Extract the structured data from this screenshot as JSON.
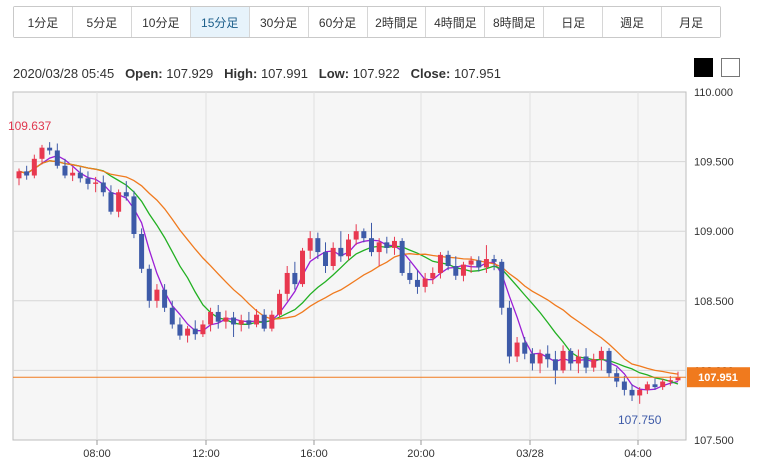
{
  "tabs": [
    {
      "label": "1分足"
    },
    {
      "label": "5分足"
    },
    {
      "label": "10分足"
    },
    {
      "label": "15分足"
    },
    {
      "label": "30分足"
    },
    {
      "label": "60分足"
    },
    {
      "label": "2時間足"
    },
    {
      "label": "4時間足"
    },
    {
      "label": "8時間足"
    },
    {
      "label": "日足"
    },
    {
      "label": "週足"
    },
    {
      "label": "月足"
    }
  ],
  "active_tab": "15分足",
  "ohlc": {
    "datetime": "2020/03/28 05:45",
    "open_label": "Open:",
    "open": "107.929",
    "high_label": "High:",
    "high": "107.991",
    "low_label": "Low:",
    "low": "107.922",
    "close_label": "Close:",
    "close": "107.951"
  },
  "theme_buttons": [
    "dark-theme",
    "light-theme"
  ],
  "colors": {
    "up": "#e8384f",
    "down": "#3d5aa8",
    "ma_fast": "#9b1fd6",
    "ma_mid": "#22b022",
    "ma_slow": "#f07a1e",
    "price_line": "#f07a1e",
    "high_label": "#e0384f",
    "low_label": "#3d5aa8"
  },
  "chart_data": {
    "type": "candlestick",
    "ylim": [
      107.5,
      110.0
    ],
    "y_ticks": [
      "110.000",
      "109.500",
      "109.000",
      "108.500",
      "108.000",
      "107.500"
    ],
    "x_ticks": [
      "08:00",
      "12:00",
      "16:00",
      "20:00",
      "03/28",
      "04:00"
    ],
    "current_price": "107.951",
    "high_marker": "109.637",
    "low_marker": "107.750",
    "candles": [
      [
        109.38,
        109.45,
        109.33,
        109.43
      ],
      [
        109.43,
        109.47,
        109.37,
        109.4
      ],
      [
        109.4,
        109.55,
        109.38,
        109.52
      ],
      [
        109.52,
        109.62,
        109.48,
        109.6
      ],
      [
        109.6,
        109.64,
        109.55,
        109.58
      ],
      [
        109.58,
        109.63,
        109.45,
        109.47
      ],
      [
        109.47,
        109.52,
        109.38,
        109.4
      ],
      [
        109.4,
        109.46,
        109.36,
        109.42
      ],
      [
        109.42,
        109.46,
        109.35,
        109.38
      ],
      [
        109.38,
        109.43,
        109.3,
        109.34
      ],
      [
        109.34,
        109.39,
        109.28,
        109.35
      ],
      [
        109.35,
        109.4,
        109.25,
        109.28
      ],
      [
        109.28,
        109.33,
        109.12,
        109.14
      ],
      [
        109.14,
        109.3,
        109.1,
        109.28
      ],
      [
        109.28,
        109.36,
        109.22,
        109.25
      ],
      [
        109.25,
        109.29,
        108.95,
        108.98
      ],
      [
        108.98,
        109.02,
        108.7,
        108.73
      ],
      [
        108.73,
        108.76,
        108.45,
        108.5
      ],
      [
        108.5,
        108.62,
        108.45,
        108.58
      ],
      [
        108.58,
        108.62,
        108.42,
        108.45
      ],
      [
        108.45,
        108.5,
        108.3,
        108.33
      ],
      [
        108.33,
        108.38,
        108.22,
        108.25
      ],
      [
        108.25,
        108.32,
        108.2,
        108.3
      ],
      [
        108.3,
        108.36,
        108.22,
        108.26
      ],
      [
        108.26,
        108.36,
        108.24,
        108.33
      ],
      [
        108.33,
        108.45,
        108.28,
        108.42
      ],
      [
        108.42,
        108.47,
        108.3,
        108.35
      ],
      [
        108.35,
        108.43,
        108.3,
        108.38
      ],
      [
        108.38,
        108.42,
        108.24,
        108.33
      ],
      [
        108.33,
        108.4,
        108.28,
        108.36
      ],
      [
        108.36,
        108.42,
        108.3,
        108.33
      ],
      [
        108.33,
        108.44,
        108.31,
        108.4
      ],
      [
        108.4,
        108.44,
        108.28,
        108.3
      ],
      [
        108.3,
        108.43,
        108.28,
        108.4
      ],
      [
        108.4,
        108.58,
        108.38,
        108.55
      ],
      [
        108.55,
        108.75,
        108.5,
        108.7
      ],
      [
        108.7,
        108.78,
        108.58,
        108.62
      ],
      [
        108.62,
        108.88,
        108.6,
        108.86
      ],
      [
        108.86,
        109.0,
        108.8,
        108.95
      ],
      [
        108.95,
        108.99,
        108.8,
        108.85
      ],
      [
        108.85,
        108.92,
        108.7,
        108.75
      ],
      [
        108.75,
        108.92,
        108.72,
        108.88
      ],
      [
        108.88,
        109.0,
        108.78,
        108.82
      ],
      [
        108.82,
        108.98,
        108.79,
        108.94
      ],
      [
        108.94,
        109.05,
        108.9,
        109.0
      ],
      [
        109.0,
        109.02,
        108.92,
        108.95
      ],
      [
        108.95,
        109.06,
        108.82,
        108.85
      ],
      [
        108.85,
        108.95,
        108.75,
        108.92
      ],
      [
        108.92,
        108.96,
        108.84,
        108.88
      ],
      [
        108.88,
        108.96,
        108.83,
        108.93
      ],
      [
        108.93,
        108.95,
        108.68,
        108.7
      ],
      [
        108.7,
        108.78,
        108.62,
        108.65
      ],
      [
        108.65,
        108.72,
        108.55,
        108.6
      ],
      [
        108.6,
        108.7,
        108.56,
        108.66
      ],
      [
        108.66,
        108.74,
        108.62,
        108.7
      ],
      [
        108.7,
        108.85,
        108.66,
        108.83
      ],
      [
        108.83,
        108.86,
        108.72,
        108.75
      ],
      [
        108.75,
        108.82,
        108.65,
        108.68
      ],
      [
        108.68,
        108.78,
        108.64,
        108.76
      ],
      [
        108.76,
        108.82,
        108.7,
        108.79
      ],
      [
        108.79,
        108.82,
        108.71,
        108.74
      ],
      [
        108.74,
        108.9,
        108.7,
        108.8
      ],
      [
        108.8,
        108.83,
        108.72,
        108.78
      ],
      [
        108.78,
        108.8,
        108.4,
        108.45
      ],
      [
        108.45,
        108.5,
        108.05,
        108.1
      ],
      [
        108.1,
        108.24,
        108.06,
        108.2
      ],
      [
        108.2,
        108.24,
        108.08,
        108.12
      ],
      [
        108.12,
        108.16,
        108.0,
        108.05
      ],
      [
        108.05,
        108.15,
        107.98,
        108.12
      ],
      [
        108.12,
        108.18,
        108.02,
        108.08
      ],
      [
        108.08,
        108.14,
        107.9,
        108.0
      ],
      [
        108.0,
        108.18,
        107.98,
        108.14
      ],
      [
        108.14,
        108.16,
        108.0,
        108.05
      ],
      [
        108.05,
        108.15,
        107.98,
        108.1
      ],
      [
        108.1,
        108.16,
        107.98,
        108.02
      ],
      [
        108.02,
        108.12,
        107.99,
        108.08
      ],
      [
        108.08,
        108.17,
        108.0,
        108.14
      ],
      [
        108.14,
        108.16,
        107.95,
        107.98
      ],
      [
        107.98,
        108.02,
        107.88,
        107.92
      ],
      [
        107.92,
        107.96,
        107.82,
        107.86
      ],
      [
        107.86,
        107.9,
        107.78,
        107.82
      ],
      [
        107.82,
        107.88,
        107.76,
        107.86
      ],
      [
        107.86,
        107.92,
        107.83,
        107.9
      ],
      [
        107.9,
        107.94,
        107.86,
        107.88
      ],
      [
        107.88,
        107.94,
        107.86,
        107.92
      ],
      [
        107.92,
        107.96,
        107.89,
        107.93
      ],
      [
        107.929,
        107.991,
        107.922,
        107.951
      ]
    ]
  }
}
